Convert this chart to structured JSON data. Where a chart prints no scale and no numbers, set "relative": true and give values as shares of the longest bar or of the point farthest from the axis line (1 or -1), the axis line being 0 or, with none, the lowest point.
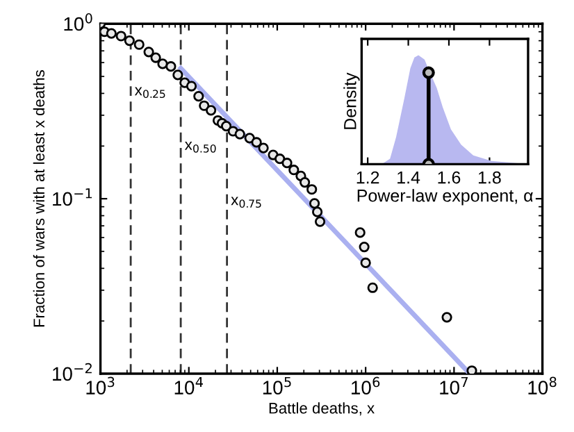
{
  "chart_data": [
    {
      "type": "scatter",
      "xlabel": "Battle deaths, x",
      "ylabel": "Fraction of wars with at least x deaths",
      "log": "xy",
      "xlim": [
        1000,
        100000000
      ],
      "ylim": [
        0.01,
        1
      ],
      "xticks": [
        {
          "value": 1000,
          "label": "10$^{3}$"
        },
        {
          "value": 10000,
          "label": "10$^{4}$"
        },
        {
          "value": 100000,
          "label": "10$^{5}$"
        },
        {
          "value": 1000000,
          "label": "10$^{6}$"
        },
        {
          "value": 10000000,
          "label": "10$^{7}$"
        },
        {
          "value": 100000000,
          "label": "10$^{8}$"
        }
      ],
      "yticks": [
        {
          "value": 0.01,
          "label": "10$^{−2}$"
        },
        {
          "value": 0.1,
          "label": "10$^{−1}$"
        },
        {
          "value": 1,
          "label": "10$^{0}$"
        }
      ],
      "grid": false,
      "series": [
        {
          "type": "line",
          "color": "#aab0f0",
          "marker": "none",
          "line_style": "solid",
          "x": [
            8100,
            14000000
          ],
          "values": [
            0.556,
            0.0104
          ]
        },
        {
          "type": "scatter",
          "color": "#000000",
          "marker": "circle",
          "x": [
            1000,
            1110,
            1330,
            1710,
            2130,
            2740,
            3520,
            4220,
            5050,
            6260,
            7500,
            8980,
            10700,
            12900,
            14900,
            17800,
            21300,
            23700,
            26500,
            31600,
            37800,
            48700,
            58300,
            69800,
            89800,
            107000,
            129000,
            154000,
            185000,
            205000,
            246000,
            264000,
            284000,
            305000,
            866000,
            964000,
            1000000,
            1200000,
            8300000,
            15900000
          ],
          "values": [
            1.0,
            0.9,
            0.88,
            0.85,
            0.8,
            0.76,
            0.69,
            0.64,
            0.59,
            0.57,
            0.51,
            0.46,
            0.44,
            0.385,
            0.34,
            0.32,
            0.28,
            0.27,
            0.26,
            0.243,
            0.234,
            0.222,
            0.21,
            0.195,
            0.178,
            0.169,
            0.16,
            0.146,
            0.135,
            0.124,
            0.113,
            0.094,
            0.084,
            0.074,
            0.064,
            0.053,
            0.043,
            0.031,
            0.021,
            0.0104
          ]
        }
      ],
      "ref_lines": [
        {
          "axis": "x",
          "value": 2200,
          "color": "#333333",
          "line_style": "dashed"
        },
        {
          "axis": "x",
          "value": 8100,
          "color": "#333333",
          "line_style": "dashed"
        },
        {
          "axis": "x",
          "value": 27000,
          "color": "#333333",
          "line_style": "dashed"
        }
      ],
      "annotations": [
        {
          "text": "x$_{0.25}$",
          "x": 2200,
          "y": 0.39
        },
        {
          "text": "x$_{0.50}$",
          "x": 8100,
          "y": 0.19
        },
        {
          "text": "x$_{0.75}$",
          "x": 27000,
          "y": 0.092
        }
      ]
    },
    {
      "type": "area",
      "xlabel": "Power-law exponent, α",
      "ylabel": "Density",
      "relative": true,
      "tick_labels": "x",
      "xlim": [
        1.17,
        1.99
      ],
      "xticks": [
        1.2,
        1.4,
        1.6,
        1.8
      ],
      "grid": false,
      "series": [
        {
          "type": "area",
          "color": "#b8b8f0",
          "x": [
            1.17,
            1.27,
            1.31,
            1.34,
            1.38,
            1.41,
            1.43,
            1.45,
            1.48,
            1.5,
            1.54,
            1.57,
            1.61,
            1.66,
            1.72,
            1.81,
            1.99
          ],
          "values": [
            0,
            0,
            0.05,
            0.25,
            0.6,
            0.88,
            0.98,
            1.0,
            0.96,
            0.87,
            0.7,
            0.52,
            0.32,
            0.18,
            0.08,
            0.03,
            0
          ]
        },
        {
          "type": "line",
          "color": "#000000",
          "marker": "circle",
          "line_style": "solid",
          "x": [
            1.5,
            1.5
          ],
          "values": [
            0,
            0.84
          ]
        }
      ]
    }
  ]
}
